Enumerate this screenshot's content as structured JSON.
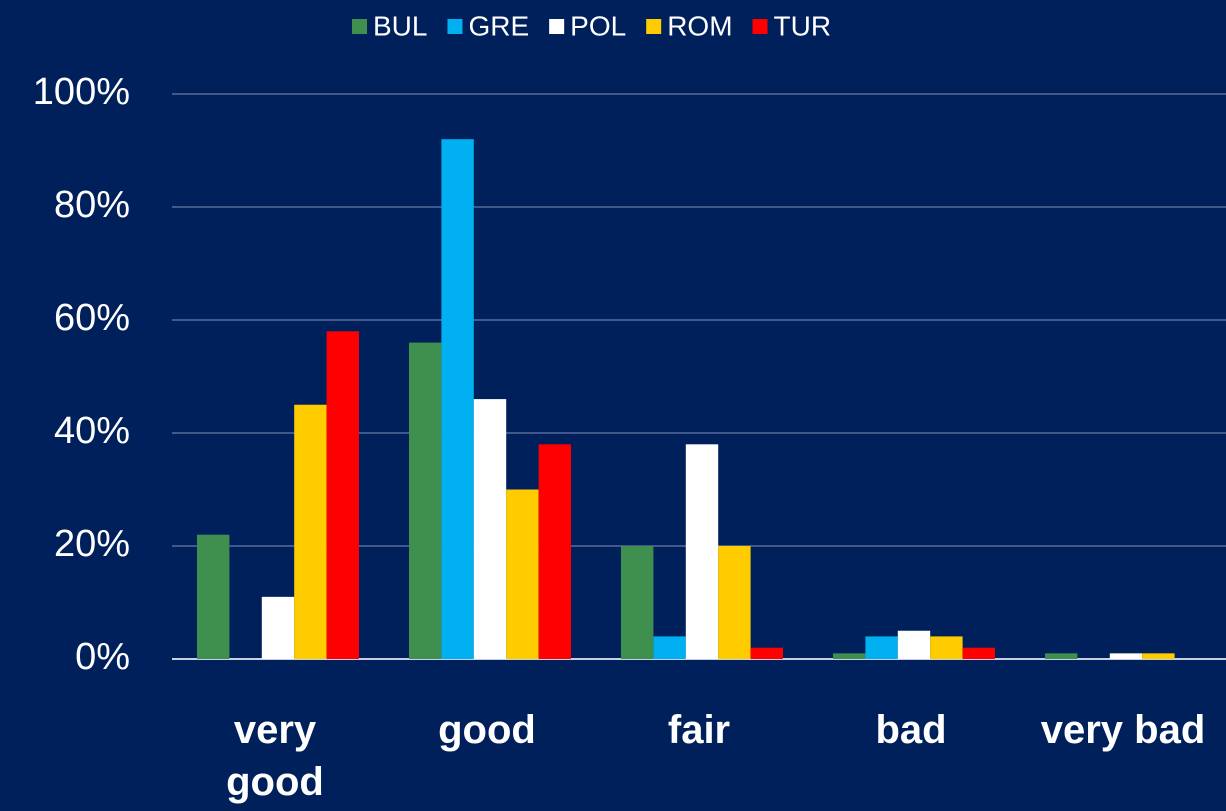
{
  "chart_data": {
    "type": "bar",
    "categories": [
      "very good",
      "good",
      "fair",
      "bad",
      "very bad"
    ],
    "series": [
      {
        "name": "BUL",
        "color": "#3f8f4f",
        "values": [
          22,
          56,
          20,
          1,
          1
        ]
      },
      {
        "name": "GRE",
        "color": "#00b0f0",
        "values": [
          0,
          92,
          4,
          4,
          0
        ]
      },
      {
        "name": "POL",
        "color": "#ffffff",
        "values": [
          11,
          46,
          38,
          5,
          1
        ]
      },
      {
        "name": "ROM",
        "color": "#ffcc00",
        "values": [
          45,
          30,
          20,
          4,
          1
        ]
      },
      {
        "name": "TUR",
        "color": "#ff0000",
        "values": [
          58,
          38,
          2,
          2,
          0
        ]
      }
    ],
    "ylim": [
      0,
      100
    ],
    "yticks": [
      {
        "value": 0,
        "label": "0%"
      },
      {
        "value": 20,
        "label": "20%"
      },
      {
        "value": 40,
        "label": "40%"
      },
      {
        "value": 60,
        "label": "60%"
      },
      {
        "value": 80,
        "label": "80%"
      },
      {
        "value": 100,
        "label": "100%"
      }
    ],
    "grid": true,
    "legend": "top"
  }
}
